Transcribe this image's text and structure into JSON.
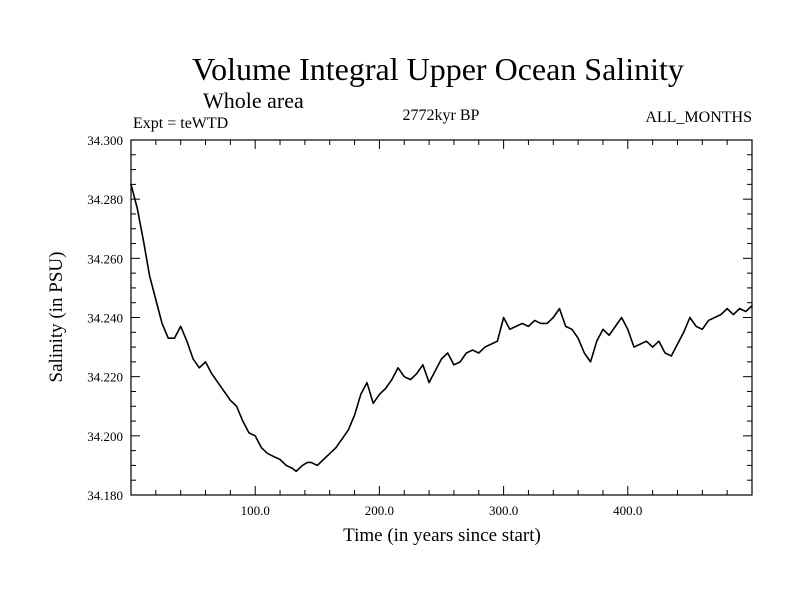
{
  "chart_data": {
    "type": "line",
    "title": "Volume Integral Upper Ocean Salinity",
    "subtitle": "Whole area",
    "annotations": {
      "experiment": "Expt = teWTD",
      "period": "2772kyr BP",
      "months": "ALL_MONTHS"
    },
    "xlabel": "Time (in years since start)",
    "ylabel": "Salinity (in PSU)",
    "xlim": [
      0,
      500
    ],
    "ylim": [
      34.18,
      34.3
    ],
    "xticks": [
      100,
      200,
      300,
      400
    ],
    "xtick_labels": [
      "100.0",
      "200.0",
      "300.0",
      "400.0"
    ],
    "yticks": [
      34.18,
      34.2,
      34.22,
      34.24,
      34.26,
      34.28,
      34.3
    ],
    "ytick_labels": [
      "34.180",
      "34.200",
      "34.220",
      "34.240",
      "34.260",
      "34.280",
      "34.300"
    ],
    "grid": false,
    "series": [
      {
        "name": "Volume integral upper ocean salinity",
        "color": "#000000",
        "x": [
          0,
          5,
          10,
          15,
          20,
          25,
          30,
          35,
          40,
          45,
          50,
          55,
          60,
          65,
          70,
          75,
          80,
          85,
          90,
          95,
          100,
          105,
          110,
          115,
          120,
          125,
          130,
          133,
          138,
          142,
          145,
          150,
          155,
          160,
          165,
          170,
          175,
          180,
          185,
          190,
          195,
          200,
          205,
          210,
          215,
          220,
          225,
          230,
          235,
          240,
          245,
          250,
          255,
          260,
          265,
          270,
          275,
          280,
          285,
          290,
          295,
          300,
          305,
          310,
          315,
          320,
          325,
          330,
          335,
          340,
          345,
          350,
          355,
          360,
          365,
          370,
          375,
          380,
          385,
          390,
          395,
          400,
          405,
          410,
          415,
          420,
          425,
          430,
          435,
          440,
          445,
          450,
          455,
          460,
          465,
          470,
          475,
          480,
          485,
          490,
          495,
          500
        ],
        "y": [
          34.285,
          34.277,
          34.266,
          34.254,
          34.246,
          34.238,
          34.233,
          34.233,
          34.237,
          34.232,
          34.226,
          34.223,
          34.225,
          34.221,
          34.218,
          34.215,
          34.212,
          34.21,
          34.205,
          34.201,
          34.2,
          34.196,
          34.194,
          34.193,
          34.192,
          34.19,
          34.189,
          34.188,
          34.19,
          34.191,
          34.191,
          34.19,
          34.192,
          34.194,
          34.196,
          34.199,
          34.202,
          34.207,
          34.214,
          34.218,
          34.211,
          34.214,
          34.216,
          34.219,
          34.223,
          34.22,
          34.219,
          34.221,
          34.224,
          34.218,
          34.222,
          34.226,
          34.228,
          34.224,
          34.225,
          34.228,
          34.229,
          34.228,
          34.23,
          34.231,
          34.232,
          34.24,
          34.236,
          34.237,
          34.238,
          34.237,
          34.239,
          34.238,
          34.238,
          34.24,
          34.243,
          34.237,
          34.236,
          34.233,
          34.228,
          34.225,
          34.232,
          34.236,
          34.234,
          34.237,
          34.24,
          34.236,
          34.23,
          34.231,
          34.232,
          34.23,
          34.232,
          34.228,
          34.227,
          34.231,
          34.235,
          34.24,
          34.237,
          34.236,
          34.239,
          34.24,
          34.241,
          34.243,
          34.241,
          34.243,
          34.242,
          34.244
        ]
      }
    ]
  }
}
